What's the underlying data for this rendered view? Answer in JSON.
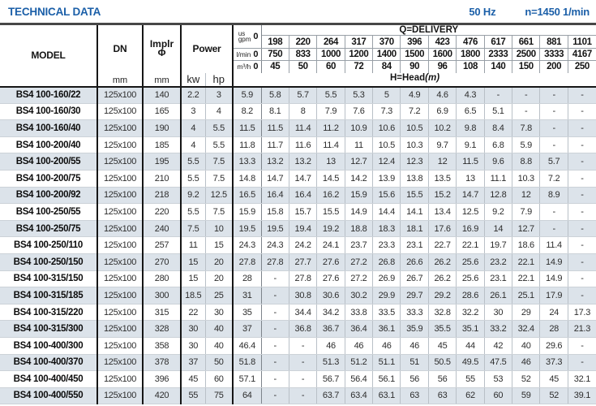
{
  "title": "TECHNICAL DATA",
  "frequency": "50 Hz",
  "speed": "n=1450 1/min",
  "table": {
    "model_label": "MODEL",
    "dn_label": "DN",
    "implr_label1": "Implr",
    "implr_label2": "Φ",
    "power_label": "Power",
    "delivery_label": "Q=DELIVERY",
    "head_label": "H=Head",
    "head_unit": "(m)",
    "zero": "0",
    "units": {
      "us": "us",
      "gpm": "gpm",
      "lmin": "l/min",
      "m3h": "m³/h",
      "mm": "mm",
      "kw": "kw",
      "hp": "hp"
    },
    "gpm": [
      "198",
      "220",
      "264",
      "317",
      "370",
      "396",
      "423",
      "476",
      "617",
      "661",
      "881",
      "1101"
    ],
    "lmin": [
      "750",
      "833",
      "1000",
      "1200",
      "1400",
      "1500",
      "1600",
      "1800",
      "2333",
      "2500",
      "3333",
      "4167"
    ],
    "m3h": [
      "45",
      "50",
      "60",
      "72",
      "84",
      "90",
      "96",
      "108",
      "140",
      "150",
      "200",
      "250"
    ],
    "rows": [
      {
        "model": "BS4 100-160/22",
        "dn": "125x100",
        "implr": "140",
        "kw": "2.2",
        "hp": "3",
        "head": [
          "5.9",
          "5.8",
          "5.7",
          "5.5",
          "5.3",
          "5",
          "4.9",
          "4.6",
          "4.3",
          "-",
          "-",
          "-",
          "-"
        ]
      },
      {
        "model": "BS4 100-160/30",
        "dn": "125x100",
        "implr": "165",
        "kw": "3",
        "hp": "4",
        "head": [
          "8.2",
          "8.1",
          "8",
          "7.9",
          "7.6",
          "7.3",
          "7.2",
          "6.9",
          "6.5",
          "5.1",
          "-",
          "-",
          "-"
        ]
      },
      {
        "model": "BS4 100-160/40",
        "dn": "125x100",
        "implr": "190",
        "kw": "4",
        "hp": "5.5",
        "head": [
          "11.5",
          "11.5",
          "11.4",
          "11.2",
          "10.9",
          "10.6",
          "10.5",
          "10.2",
          "9.8",
          "8.4",
          "7.8",
          "-",
          "-"
        ]
      },
      {
        "model": "BS4 100-200/40",
        "dn": "125x100",
        "implr": "185",
        "kw": "4",
        "hp": "5.5",
        "head": [
          "11.8",
          "11.7",
          "11.6",
          "11.4",
          "11",
          "10.5",
          "10.3",
          "9.7",
          "9.1",
          "6.8",
          "5.9",
          "-",
          "-"
        ]
      },
      {
        "model": "BS4 100-200/55",
        "dn": "125x100",
        "implr": "195",
        "kw": "5.5",
        "hp": "7.5",
        "head": [
          "13.3",
          "13.2",
          "13.2",
          "13",
          "12.7",
          "12.4",
          "12.3",
          "12",
          "11.5",
          "9.6",
          "8.8",
          "5.7",
          "-"
        ]
      },
      {
        "model": "BS4 100-200/75",
        "dn": "125x100",
        "implr": "210",
        "kw": "5.5",
        "hp": "7.5",
        "head": [
          "14.8",
          "14.7",
          "14.7",
          "14.5",
          "14.2",
          "13.9",
          "13.8",
          "13.5",
          "13",
          "11.1",
          "10.3",
          "7.2",
          "-"
        ]
      },
      {
        "model": "BS4 100-200/92",
        "dn": "125x100",
        "implr": "218",
        "kw": "9.2",
        "hp": "12.5",
        "head": [
          "16.5",
          "16.4",
          "16.4",
          "16.2",
          "15.9",
          "15.6",
          "15.5",
          "15.2",
          "14.7",
          "12.8",
          "12",
          "8.9",
          "-"
        ]
      },
      {
        "model": "BS4 100-250/55",
        "dn": "125x100",
        "implr": "220",
        "kw": "5.5",
        "hp": "7.5",
        "head": [
          "15.9",
          "15.8",
          "15.7",
          "15.5",
          "14.9",
          "14.4",
          "14.1",
          "13.4",
          "12.5",
          "9.2",
          "7.9",
          "-",
          "-"
        ]
      },
      {
        "model": "BS4 100-250/75",
        "dn": "125x100",
        "implr": "240",
        "kw": "7.5",
        "hp": "10",
        "head": [
          "19.5",
          "19.5",
          "19.4",
          "19.2",
          "18.8",
          "18.3",
          "18.1",
          "17.6",
          "16.9",
          "14",
          "12.7",
          "-",
          "-"
        ]
      },
      {
        "model": "BS4 100-250/110",
        "dn": "125x100",
        "implr": "257",
        "kw": "11",
        "hp": "15",
        "head": [
          "24.3",
          "24.3",
          "24.2",
          "24.1",
          "23.7",
          "23.3",
          "23.1",
          "22.7",
          "22.1",
          "19.7",
          "18.6",
          "11.4",
          "-"
        ]
      },
      {
        "model": "BS4 100-250/150",
        "dn": "125x100",
        "implr": "270",
        "kw": "15",
        "hp": "20",
        "head": [
          "27.8",
          "27.8",
          "27.7",
          "27.6",
          "27.2",
          "26.8",
          "26.6",
          "26.2",
          "25.6",
          "23.2",
          "22.1",
          "14.9",
          "-"
        ]
      },
      {
        "model": "BS4 100-315/150",
        "dn": "125x100",
        "implr": "280",
        "kw": "15",
        "hp": "20",
        "head": [
          "28",
          "-",
          "27.8",
          "27.6",
          "27.2",
          "26.9",
          "26.7",
          "26.2",
          "25.6",
          "23.1",
          "22.1",
          "14.9",
          "-"
        ]
      },
      {
        "model": "BS4 100-315/185",
        "dn": "125x100",
        "implr": "300",
        "kw": "18.5",
        "hp": "25",
        "head": [
          "31",
          "-",
          "30.8",
          "30.6",
          "30.2",
          "29.9",
          "29.7",
          "29.2",
          "28.6",
          "26.1",
          "25.1",
          "17.9",
          "-"
        ]
      },
      {
        "model": "BS4 100-315/220",
        "dn": "125x100",
        "implr": "315",
        "kw": "22",
        "hp": "30",
        "head": [
          "35",
          "-",
          "34.4",
          "34.2",
          "33.8",
          "33.5",
          "33.3",
          "32.8",
          "32.2",
          "30",
          "29",
          "24",
          "17.3"
        ]
      },
      {
        "model": "BS4 100-315/300",
        "dn": "125x100",
        "implr": "328",
        "kw": "30",
        "hp": "40",
        "head": [
          "37",
          "-",
          "36.8",
          "36.7",
          "36.4",
          "36.1",
          "35.9",
          "35.5",
          "35.1",
          "33.2",
          "32.4",
          "28",
          "21.3"
        ]
      },
      {
        "model": "BS4 100-400/300",
        "dn": "125x100",
        "implr": "358",
        "kw": "30",
        "hp": "40",
        "head": [
          "46.4",
          "-",
          "-",
          "46",
          "46",
          "46",
          "46",
          "45",
          "44",
          "42",
          "40",
          "29.6",
          "-"
        ]
      },
      {
        "model": "BS4 100-400/370",
        "dn": "125x100",
        "implr": "378",
        "kw": "37",
        "hp": "50",
        "head": [
          "51.8",
          "-",
          "-",
          "51.3",
          "51.2",
          "51.1",
          "51",
          "50.5",
          "49.5",
          "47.5",
          "46",
          "37.3",
          "-"
        ]
      },
      {
        "model": "BS4 100-400/450",
        "dn": "125x100",
        "implr": "396",
        "kw": "45",
        "hp": "60",
        "head": [
          "57.1",
          "-",
          "-",
          "56.7",
          "56.4",
          "56.1",
          "56",
          "56",
          "55",
          "53",
          "52",
          "45",
          "32.1"
        ]
      },
      {
        "model": "BS4 100-400/550",
        "dn": "125x100",
        "implr": "420",
        "kw": "55",
        "hp": "75",
        "head": [
          "64",
          "-",
          "-",
          "63.7",
          "63.4",
          "63.1",
          "63",
          "63",
          "62",
          "60",
          "59",
          "52",
          "39.1"
        ]
      }
    ]
  }
}
